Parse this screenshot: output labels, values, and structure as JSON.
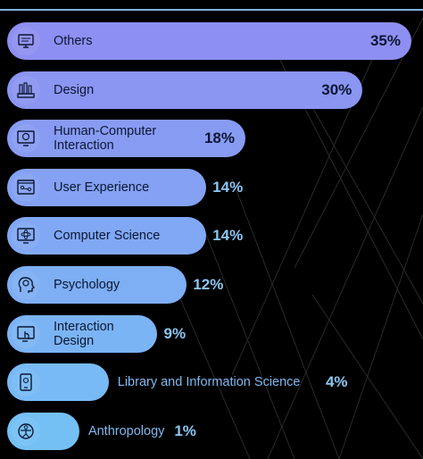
{
  "chart_data": {
    "type": "bar",
    "orientation": "horizontal",
    "categories": [
      "Others",
      "Design",
      "Human-Computer\nInteraction",
      "User Experience",
      "Computer Science",
      "Psychology",
      "Interaction\nDesign",
      "Library and Information Science",
      "Anthropology"
    ],
    "values": [
      35,
      30,
      18,
      14,
      14,
      12,
      9,
      4,
      1
    ],
    "value_labels": [
      "35%",
      "30%",
      "18%",
      "14%",
      "14%",
      "12%",
      "9%",
      "4%",
      "1%"
    ],
    "icons": [
      "monitor-icon",
      "design-tools-icon",
      "hci-brain-monitor-icon",
      "ux-window-icon",
      "computer-science-atom-icon",
      "psychology-head-icon",
      "touch-screen-icon",
      "tablet-library-icon",
      "anthropology-figure-icon"
    ],
    "colors": {
      "bar_top": "#8e8ff2",
      "bar_bottom": "#74c0f5",
      "label_inside": "#0b1733",
      "label_outside": "#7fb9f0",
      "value_outside": "#8cc7f4",
      "background": "#000000"
    },
    "xlim": [
      0,
      35
    ]
  }
}
